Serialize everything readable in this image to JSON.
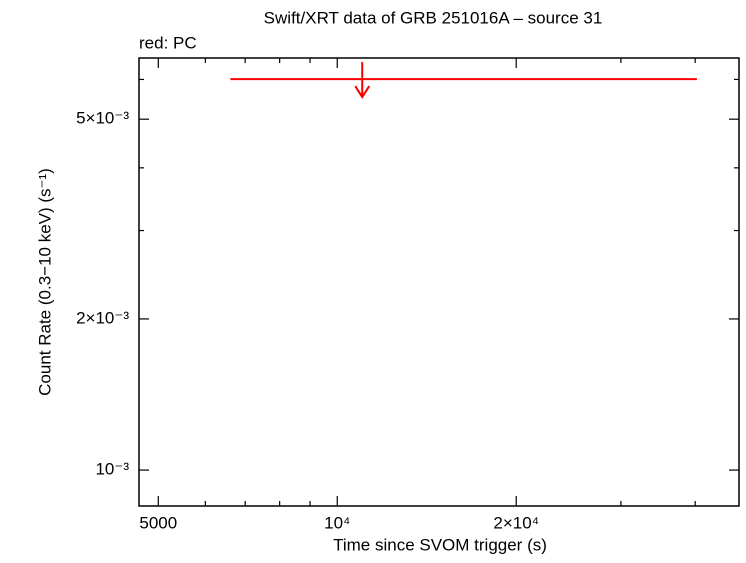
{
  "chart_data": {
    "type": "upper_limits",
    "title": "Swift/XRT data of GRB 251016A – source 31",
    "annotation": "red: PC",
    "x_label": "Time since SVOM trigger (s)",
    "y_label": "Count Rate (0.3−10 keV) (s⁻¹)",
    "x_log": true,
    "y_log": true,
    "xlim": [
      4640,
      47400
    ],
    "ylim": [
      0.000848,
      0.00662
    ],
    "xticks": [
      5000,
      {
        "value": 10000,
        "label": "10⁴"
      },
      {
        "value": 20000,
        "label": "2×10⁴"
      }
    ],
    "yticks": [
      {
        "value": 0.001,
        "label": "10⁻³"
      },
      {
        "value": 0.002,
        "label": "2×10⁻³"
      },
      {
        "value": 0.005,
        "label": "5×10⁻³"
      }
    ],
    "xminor_ticks": [
      6000,
      7000,
      8000,
      9000,
      30000,
      40000
    ],
    "yminor_ticks": [
      0.003,
      0.004,
      0.006
    ],
    "series": [
      {
        "color": "#ff0000",
        "x": [
          11016
        ],
        "x_low": [
          6610
        ],
        "x_high": [
          40270
        ],
        "values": [
          0.00601
        ]
      }
    ]
  }
}
